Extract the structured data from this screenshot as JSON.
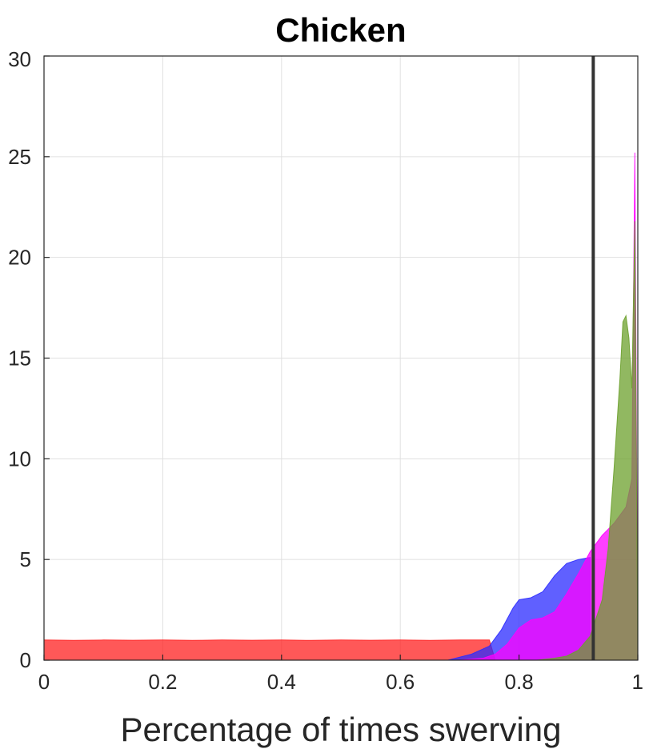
{
  "chart_data": {
    "type": "area",
    "title": "Chicken",
    "xlabel": "Percentage of times swerving",
    "ylabel": "",
    "xlim": [
      0,
      1
    ],
    "ylim": [
      0,
      30
    ],
    "xticks": [
      0,
      0.2,
      0.4,
      0.6,
      0.8,
      1
    ],
    "xtick_labels": [
      "0",
      "0.2",
      "0.4",
      "0.6",
      "0.8",
      "1"
    ],
    "yticks": [
      0,
      5,
      10,
      15,
      20,
      25,
      30
    ],
    "ytick_labels": [
      "0",
      "5",
      "10",
      "15",
      "20",
      "25",
      "30"
    ],
    "grid": true,
    "vline": {
      "x": 0.925,
      "color": "#333333"
    },
    "series": [
      {
        "color": "#ff2020",
        "x": [
          0.0,
          0.05,
          0.1,
          0.15,
          0.2,
          0.25,
          0.3,
          0.35,
          0.4,
          0.45,
          0.5,
          0.55,
          0.6,
          0.65,
          0.7,
          0.75,
          0.76
        ],
        "y": [
          1.0,
          0.98,
          1.0,
          0.99,
          1.0,
          0.98,
          1.0,
          0.99,
          1.0,
          0.98,
          1.0,
          0.99,
          1.0,
          0.98,
          1.0,
          1.0,
          0.0
        ]
      },
      {
        "color": "#2b2bff",
        "x": [
          0.68,
          0.72,
          0.75,
          0.77,
          0.79,
          0.8,
          0.82,
          0.84,
          0.86,
          0.88,
          0.9,
          0.92
        ],
        "y": [
          0.0,
          0.3,
          0.7,
          1.5,
          2.6,
          3.0,
          3.1,
          3.4,
          4.2,
          4.8,
          5.0,
          5.1
        ]
      },
      {
        "color": "#ff00ff",
        "x": [
          0.7,
          0.74,
          0.76,
          0.78,
          0.8,
          0.82,
          0.84,
          0.86,
          0.88,
          0.9,
          0.92,
          0.94,
          0.96,
          0.98,
          0.99,
          0.995,
          1.0
        ],
        "y": [
          0.0,
          0.1,
          0.3,
          0.8,
          1.6,
          2.0,
          2.1,
          2.4,
          3.3,
          4.3,
          5.4,
          6.2,
          6.8,
          7.6,
          9.0,
          25.2,
          0.0
        ]
      },
      {
        "color": "#6ca02c",
        "x": [
          0.83,
          0.86,
          0.88,
          0.9,
          0.92,
          0.94,
          0.95,
          0.96,
          0.97,
          0.975,
          0.98,
          0.985,
          0.99,
          0.995,
          1.0
        ],
        "y": [
          0.0,
          0.1,
          0.2,
          0.5,
          1.2,
          3.0,
          5.5,
          9.5,
          14.0,
          16.8,
          17.1,
          16.0,
          13.5,
          21.8,
          0.0
        ]
      }
    ]
  }
}
